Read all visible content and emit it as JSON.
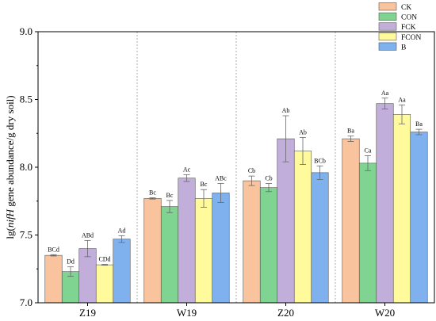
{
  "chart_data": {
    "type": "bar",
    "categories": [
      "Z19",
      "W19",
      "Z20",
      "W20"
    ],
    "ylabel_prefix": "lg(",
    "ylabel_italic": "nifH",
    "ylabel_suffix": " gene abundance/g dry soil)",
    "ylim": [
      7.0,
      9.0
    ],
    "yticks": [
      7.0,
      7.5,
      8.0,
      8.5,
      9.0
    ],
    "ytick_labels": [
      "7.0",
      "7.5",
      "8.0",
      "8.5",
      "9.0"
    ],
    "legend_position": "top-right",
    "series": [
      {
        "name": "CK",
        "color": "#F9C39E",
        "values": [
          7.35,
          7.77,
          7.9,
          8.21
        ],
        "errors": [
          0.005,
          0.005,
          0.035,
          0.02
        ],
        "labels": [
          "BCd",
          "Bc",
          "Cb",
          "Ba"
        ]
      },
      {
        "name": "CON",
        "color": "#7FD492",
        "values": [
          7.23,
          7.71,
          7.85,
          8.03
        ],
        "errors": [
          0.035,
          0.045,
          0.03,
          0.055
        ],
        "labels": [
          "Dd",
          "Bc",
          "Cb",
          "Ca"
        ]
      },
      {
        "name": "FCK",
        "color": "#C2AEDA",
        "values": [
          7.4,
          7.92,
          8.21,
          8.47
        ],
        "errors": [
          0.06,
          0.025,
          0.17,
          0.04
        ],
        "labels": [
          "ABd",
          "Ac",
          "Ab",
          "Aa"
        ]
      },
      {
        "name": "FCON",
        "color": "#FFFA9C",
        "values": [
          7.28,
          7.77,
          8.12,
          8.39
        ],
        "errors": [
          0.003,
          0.065,
          0.1,
          0.07
        ],
        "labels": [
          "CDd",
          "Bc",
          "Ab",
          "Aa"
        ]
      },
      {
        "name": "B",
        "color": "#7FB1EF",
        "values": [
          7.47,
          7.81,
          7.96,
          8.26
        ],
        "errors": [
          0.025,
          0.07,
          0.05,
          0.02
        ],
        "labels": [
          "Ad",
          "ABc",
          "BCb",
          "Ba"
        ]
      }
    ]
  }
}
